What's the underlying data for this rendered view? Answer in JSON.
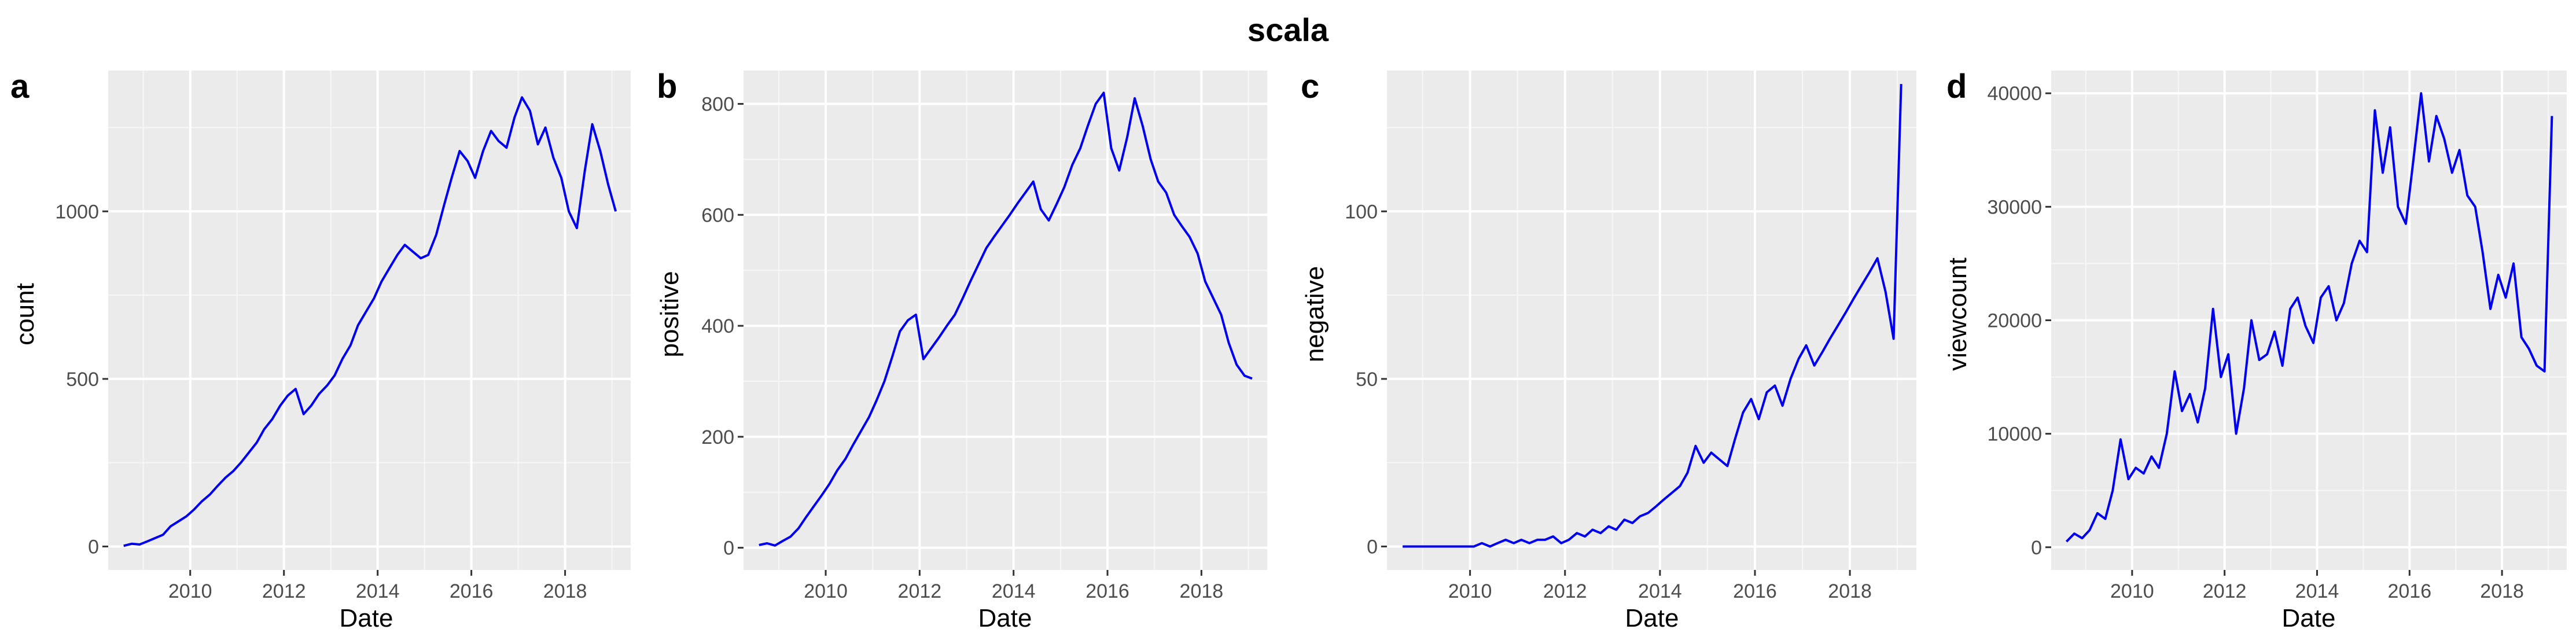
{
  "figure": {
    "title": "scala"
  },
  "colors": {
    "panel_bg": "#ebebeb",
    "grid_major": "#ffffff",
    "grid_minor": "#f7f7f7",
    "line": "#0000ee",
    "tick_text": "#4d4d4d",
    "tick_mark": "#333333"
  },
  "chart_data": [
    {
      "type": "line",
      "tag": "a",
      "xlabel": "Date",
      "ylabel": "count",
      "xlim": [
        2008.25,
        2019.4
      ],
      "ylim": [
        -70,
        1420
      ],
      "x_ticks": [
        2010,
        2012,
        2014,
        2016,
        2018
      ],
      "y_ticks": [
        0,
        500,
        1000
      ],
      "grid": true,
      "series": [
        {
          "x": [
            2008.58,
            2008.75,
            2008.92,
            2009.08,
            2009.25,
            2009.42,
            2009.58,
            2009.75,
            2009.92,
            2010.08,
            2010.25,
            2010.42,
            2010.58,
            2010.75,
            2010.92,
            2011.08,
            2011.25,
            2011.42,
            2011.58,
            2011.75,
            2011.92,
            2012.08,
            2012.25,
            2012.42,
            2012.58,
            2012.75,
            2012.92,
            2013.08,
            2013.25,
            2013.42,
            2013.58,
            2013.75,
            2013.92,
            2014.08,
            2014.25,
            2014.42,
            2014.58,
            2014.75,
            2014.92,
            2015.08,
            2015.25,
            2015.42,
            2015.58,
            2015.75,
            2015.92,
            2016.08,
            2016.25,
            2016.42,
            2016.58,
            2016.75,
            2016.92,
            2017.08,
            2017.25,
            2017.42,
            2017.58,
            2017.75,
            2017.92,
            2018.08,
            2018.25,
            2018.42,
            2018.58,
            2018.75,
            2018.92,
            2019.08
          ],
          "y": [
            2,
            8,
            6,
            15,
            25,
            35,
            60,
            75,
            90,
            110,
            135,
            155,
            180,
            205,
            225,
            250,
            280,
            310,
            350,
            380,
            420,
            450,
            470,
            395,
            420,
            455,
            480,
            510,
            560,
            600,
            660,
            700,
            740,
            790,
            830,
            870,
            900,
            880,
            860,
            870,
            930,
            1020,
            1100,
            1180,
            1150,
            1100,
            1180,
            1240,
            1210,
            1190,
            1280,
            1340,
            1300,
            1200,
            1250,
            1160,
            1100,
            1000,
            950,
            1120,
            1260,
            1180,
            1080,
            1000
          ]
        }
      ]
    },
    {
      "type": "line",
      "tag": "b",
      "xlabel": "Date",
      "ylabel": "positive",
      "xlim": [
        2008.25,
        2019.4
      ],
      "ylim": [
        -40,
        860
      ],
      "x_ticks": [
        2010,
        2012,
        2014,
        2016,
        2018
      ],
      "y_ticks": [
        0,
        200,
        400,
        600,
        800
      ],
      "grid": true,
      "series": [
        {
          "x": [
            2008.58,
            2008.75,
            2008.92,
            2009.08,
            2009.25,
            2009.42,
            2009.58,
            2009.75,
            2009.92,
            2010.08,
            2010.25,
            2010.42,
            2010.58,
            2010.75,
            2010.92,
            2011.08,
            2011.25,
            2011.42,
            2011.58,
            2011.75,
            2011.92,
            2012.08,
            2012.25,
            2012.42,
            2012.58,
            2012.75,
            2012.92,
            2013.08,
            2013.25,
            2013.42,
            2013.58,
            2013.75,
            2013.92,
            2014.08,
            2014.25,
            2014.42,
            2014.58,
            2014.75,
            2014.92,
            2015.08,
            2015.25,
            2015.42,
            2015.58,
            2015.75,
            2015.92,
            2016.08,
            2016.25,
            2016.42,
            2016.58,
            2016.75,
            2016.92,
            2017.08,
            2017.25,
            2017.42,
            2017.58,
            2017.75,
            2017.92,
            2018.08,
            2018.25,
            2018.42,
            2018.58,
            2018.75,
            2018.92,
            2019.08
          ],
          "y": [
            5,
            8,
            4,
            12,
            20,
            35,
            55,
            75,
            95,
            115,
            140,
            160,
            185,
            210,
            235,
            265,
            300,
            345,
            390,
            410,
            420,
            340,
            360,
            380,
            400,
            420,
            450,
            480,
            510,
            540,
            560,
            580,
            600,
            620,
            640,
            660,
            610,
            590,
            620,
            650,
            690,
            720,
            760,
            800,
            820,
            720,
            680,
            740,
            810,
            760,
            700,
            660,
            640,
            600,
            580,
            560,
            530,
            480,
            450,
            420,
            370,
            330,
            310,
            305
          ]
        }
      ]
    },
    {
      "type": "line",
      "tag": "c",
      "xlabel": "Date",
      "ylabel": "negative",
      "xlim": [
        2008.25,
        2019.4
      ],
      "ylim": [
        -7,
        142
      ],
      "x_ticks": [
        2010,
        2012,
        2014,
        2016,
        2018
      ],
      "y_ticks": [
        0,
        50,
        100
      ],
      "grid": true,
      "series": [
        {
          "x": [
            2008.58,
            2008.75,
            2008.92,
            2009.08,
            2009.25,
            2009.42,
            2009.58,
            2009.75,
            2009.92,
            2010.08,
            2010.25,
            2010.42,
            2010.58,
            2010.75,
            2010.92,
            2011.08,
            2011.25,
            2011.42,
            2011.58,
            2011.75,
            2011.92,
            2012.08,
            2012.25,
            2012.42,
            2012.58,
            2012.75,
            2012.92,
            2013.08,
            2013.25,
            2013.42,
            2013.58,
            2013.75,
            2013.92,
            2014.08,
            2014.25,
            2014.42,
            2014.58,
            2014.75,
            2014.92,
            2015.08,
            2015.25,
            2015.42,
            2015.58,
            2015.75,
            2015.92,
            2016.08,
            2016.25,
            2016.42,
            2016.58,
            2016.75,
            2016.92,
            2017.08,
            2017.25,
            2017.42,
            2017.58,
            2017.75,
            2017.92,
            2018.08,
            2018.25,
            2018.42,
            2018.58,
            2018.75,
            2018.92,
            2019.08
          ],
          "y": [
            0,
            0,
            0,
            0,
            0,
            0,
            0,
            0,
            0,
            0,
            1,
            0,
            1,
            2,
            1,
            2,
            1,
            2,
            2,
            3,
            1,
            2,
            4,
            3,
            5,
            4,
            6,
            5,
            8,
            7,
            9,
            10,
            12,
            14,
            16,
            18,
            22,
            30,
            25,
            28,
            26,
            24,
            32,
            40,
            44,
            38,
            46,
            48,
            42,
            50,
            56,
            60,
            54,
            58,
            62,
            66,
            70,
            74,
            78,
            82,
            86,
            76,
            62,
            138
          ]
        }
      ]
    },
    {
      "type": "line",
      "tag": "d",
      "xlabel": "Date",
      "ylabel": "viewcount",
      "xlim": [
        2008.25,
        2019.4
      ],
      "ylim": [
        -2000,
        42000
      ],
      "x_ticks": [
        2010,
        2012,
        2014,
        2016,
        2018
      ],
      "y_ticks": [
        0,
        10000,
        20000,
        30000,
        40000
      ],
      "grid": true,
      "series": [
        {
          "x": [
            2008.58,
            2008.75,
            2008.92,
            2009.08,
            2009.25,
            2009.42,
            2009.58,
            2009.75,
            2009.92,
            2010.08,
            2010.25,
            2010.42,
            2010.58,
            2010.75,
            2010.92,
            2011.08,
            2011.25,
            2011.42,
            2011.58,
            2011.75,
            2011.92,
            2012.08,
            2012.25,
            2012.42,
            2012.58,
            2012.75,
            2012.92,
            2013.08,
            2013.25,
            2013.42,
            2013.58,
            2013.75,
            2013.92,
            2014.08,
            2014.25,
            2014.42,
            2014.58,
            2014.75,
            2014.92,
            2015.08,
            2015.25,
            2015.42,
            2015.58,
            2015.75,
            2015.92,
            2016.08,
            2016.25,
            2016.42,
            2016.58,
            2016.75,
            2016.92,
            2017.08,
            2017.25,
            2017.42,
            2017.58,
            2017.75,
            2017.92,
            2018.08,
            2018.25,
            2018.42,
            2018.58,
            2018.75,
            2018.92,
            2019.08
          ],
          "y": [
            500,
            1200,
            800,
            1500,
            3000,
            2500,
            5000,
            9500,
            6000,
            7000,
            6500,
            8000,
            7000,
            10000,
            15500,
            12000,
            13500,
            11000,
            14000,
            21000,
            15000,
            17000,
            10000,
            14000,
            20000,
            16500,
            17000,
            19000,
            16000,
            21000,
            22000,
            19500,
            18000,
            22000,
            23000,
            20000,
            21500,
            25000,
            27000,
            26000,
            38500,
            33000,
            37000,
            30000,
            28500,
            34000,
            40000,
            34000,
            38000,
            36000,
            33000,
            35000,
            31000,
            30000,
            26000,
            21000,
            24000,
            22000,
            25000,
            18500,
            17500,
            16000,
            15500,
            38000
          ]
        }
      ]
    }
  ]
}
